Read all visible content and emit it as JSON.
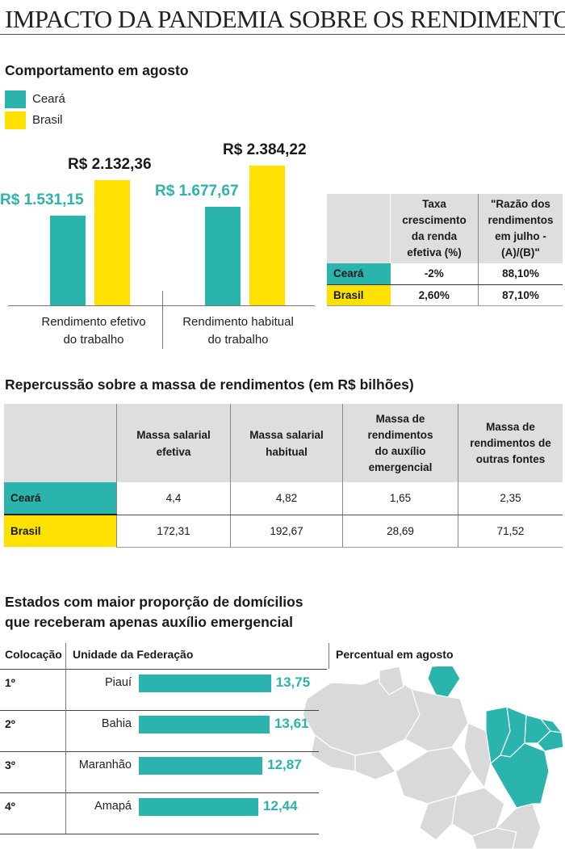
{
  "title": "IMPACTO DA PANDEMIA SOBRE OS RENDIMENTOS",
  "colors": {
    "ceara": "#2bb3ad",
    "brasil": "#ffe100",
    "header_gray": "#dcdfdd",
    "map_gray": "#d9d9d9"
  },
  "section1": {
    "heading": "Comportamento em agosto",
    "legend": [
      {
        "label": "Ceará",
        "color": "#2bb3ad"
      },
      {
        "label": "Brasil",
        "color": "#ffe100"
      }
    ],
    "chart_data": {
      "type": "bar",
      "categories": [
        "Rendimento efetivo do trabalho",
        "Rendimento habitual do trabalho"
      ],
      "series": [
        {
          "name": "Ceará",
          "values": [
            1531.15,
            1677.67
          ],
          "labels": [
            "R$ 1.531,15",
            "R$ 1.677,67"
          ]
        },
        {
          "name": "Brasil",
          "values": [
            2132.36,
            2384.22
          ],
          "labels": [
            "R$ 2.132,36",
            "R$ 2.384,22"
          ]
        }
      ],
      "category_lines": [
        [
          "Rendimento efetivo",
          "do trabalho"
        ],
        [
          "Rendimento habitual",
          "do trabalho"
        ]
      ],
      "ylim": [
        0,
        2384.22
      ]
    },
    "table": {
      "headers": [
        "Taxa crescimento da renda efetiva (%)",
        "\"Razão dos rendimentos em julho - (A)/(B)\""
      ],
      "header_lines": [
        [
          "Taxa",
          "crescimento",
          "da renda",
          "efetiva (%)"
        ],
        [
          "\"Razão dos",
          "rendimentos",
          "em julho -",
          "(A)/(B)\""
        ]
      ],
      "rows": [
        {
          "label": "Ceará",
          "values": [
            "-2%",
            "88,10%"
          ]
        },
        {
          "label": "Brasil",
          "values": [
            "2,60%",
            "87,10%"
          ]
        }
      ]
    }
  },
  "section2": {
    "heading": "Repercussão sobre a massa de rendimentos (em R$ bilhões)",
    "headers": [
      [
        "Massa salarial",
        "efetiva"
      ],
      [
        "Massa salarial",
        "habitual"
      ],
      [
        "Massa de",
        "rendimentos",
        "do auxílio",
        "emergencial"
      ],
      [
        "Massa de",
        "rendimentos de",
        "outras fontes"
      ]
    ],
    "rows": [
      {
        "label": "Ceará",
        "values": [
          "4,4",
          "4,82",
          "1,65",
          "2,35"
        ]
      },
      {
        "label": "Brasil",
        "values": [
          "172,31",
          "192,67",
          "28,69",
          "71,52"
        ]
      }
    ]
  },
  "section3": {
    "heading_lines": [
      "Estados com maior proporção de domícilios",
      "que receberam apenas auxílio emergencial"
    ],
    "col_headers": [
      "Colocação",
      "Unidade da Federação",
      "Percentual em agosto"
    ],
    "chart_data": {
      "type": "bar",
      "categories": [
        "Piauí",
        "Bahia",
        "Maranhão",
        "Amapá"
      ],
      "ranks": [
        "1º",
        "2º",
        "3º",
        "4º"
      ],
      "values": [
        13.75,
        13.61,
        12.87,
        12.44
      ],
      "value_labels": [
        "13,75",
        "13,61",
        "12,87",
        "12,44"
      ]
    },
    "map_icon": "brazil-map"
  }
}
